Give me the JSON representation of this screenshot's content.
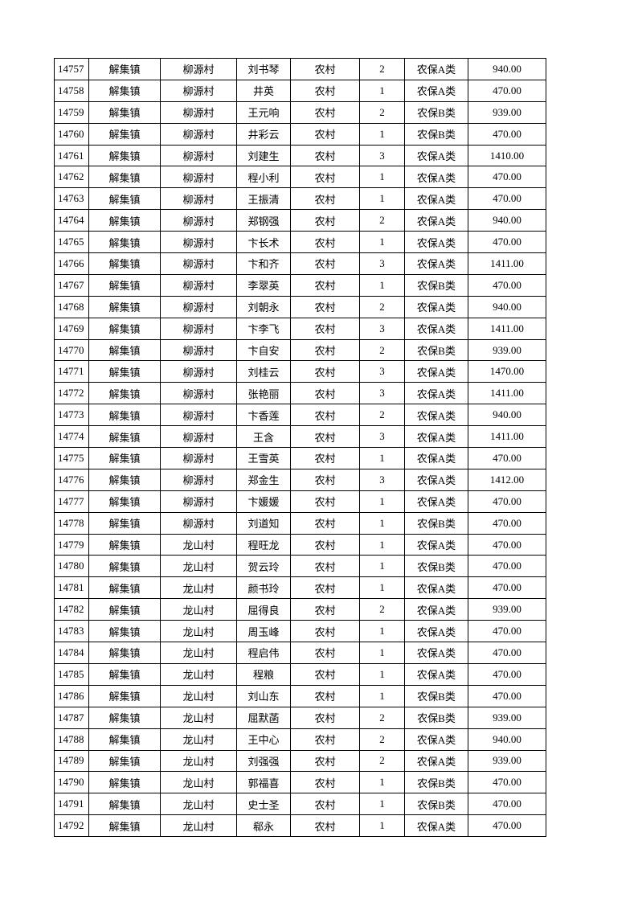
{
  "table": {
    "rows": [
      [
        "14757",
        "解集镇",
        "柳源村",
        "刘书琴",
        "农村",
        "2",
        "农保A类",
        "940.00"
      ],
      [
        "14758",
        "解集镇",
        "柳源村",
        "井英",
        "农村",
        "1",
        "农保A类",
        "470.00"
      ],
      [
        "14759",
        "解集镇",
        "柳源村",
        "王元响",
        "农村",
        "2",
        "农保B类",
        "939.00"
      ],
      [
        "14760",
        "解集镇",
        "柳源村",
        "井彩云",
        "农村",
        "1",
        "农保B类",
        "470.00"
      ],
      [
        "14761",
        "解集镇",
        "柳源村",
        "刘建生",
        "农村",
        "3",
        "农保A类",
        "1410.00"
      ],
      [
        "14762",
        "解集镇",
        "柳源村",
        "程小利",
        "农村",
        "1",
        "农保A类",
        "470.00"
      ],
      [
        "14763",
        "解集镇",
        "柳源村",
        "王振清",
        "农村",
        "1",
        "农保A类",
        "470.00"
      ],
      [
        "14764",
        "解集镇",
        "柳源村",
        "郑钢强",
        "农村",
        "2",
        "农保A类",
        "940.00"
      ],
      [
        "14765",
        "解集镇",
        "柳源村",
        "卞长术",
        "农村",
        "1",
        "农保A类",
        "470.00"
      ],
      [
        "14766",
        "解集镇",
        "柳源村",
        "卞和齐",
        "农村",
        "3",
        "农保A类",
        "1411.00"
      ],
      [
        "14767",
        "解集镇",
        "柳源村",
        "李翠英",
        "农村",
        "1",
        "农保B类",
        "470.00"
      ],
      [
        "14768",
        "解集镇",
        "柳源村",
        "刘朝永",
        "农村",
        "2",
        "农保A类",
        "940.00"
      ],
      [
        "14769",
        "解集镇",
        "柳源村",
        "卞李飞",
        "农村",
        "3",
        "农保A类",
        "1411.00"
      ],
      [
        "14770",
        "解集镇",
        "柳源村",
        "卞自安",
        "农村",
        "2",
        "农保B类",
        "939.00"
      ],
      [
        "14771",
        "解集镇",
        "柳源村",
        "刘桂云",
        "农村",
        "3",
        "农保A类",
        "1470.00"
      ],
      [
        "14772",
        "解集镇",
        "柳源村",
        "张艳丽",
        "农村",
        "3",
        "农保A类",
        "1411.00"
      ],
      [
        "14773",
        "解集镇",
        "柳源村",
        "卞香莲",
        "农村",
        "2",
        "农保A类",
        "940.00"
      ],
      [
        "14774",
        "解集镇",
        "柳源村",
        "王含",
        "农村",
        "3",
        "农保A类",
        "1411.00"
      ],
      [
        "14775",
        "解集镇",
        "柳源村",
        "王雪英",
        "农村",
        "1",
        "农保A类",
        "470.00"
      ],
      [
        "14776",
        "解集镇",
        "柳源村",
        "郑金生",
        "农村",
        "3",
        "农保A类",
        "1412.00"
      ],
      [
        "14777",
        "解集镇",
        "柳源村",
        "卞媛媛",
        "农村",
        "1",
        "农保A类",
        "470.00"
      ],
      [
        "14778",
        "解集镇",
        "柳源村",
        "刘道知",
        "农村",
        "1",
        "农保B类",
        "470.00"
      ],
      [
        "14779",
        "解集镇",
        "龙山村",
        "程旺龙",
        "农村",
        "1",
        "农保A类",
        "470.00"
      ],
      [
        "14780",
        "解集镇",
        "龙山村",
        "贺云玲",
        "农村",
        "1",
        "农保B类",
        "470.00"
      ],
      [
        "14781",
        "解集镇",
        "龙山村",
        "颜书玲",
        "农村",
        "1",
        "农保A类",
        "470.00"
      ],
      [
        "14782",
        "解集镇",
        "龙山村",
        "屈得良",
        "农村",
        "2",
        "农保A类",
        "939.00"
      ],
      [
        "14783",
        "解集镇",
        "龙山村",
        "周玉峰",
        "农村",
        "1",
        "农保A类",
        "470.00"
      ],
      [
        "14784",
        "解集镇",
        "龙山村",
        "程启伟",
        "农村",
        "1",
        "农保A类",
        "470.00"
      ],
      [
        "14785",
        "解集镇",
        "龙山村",
        "程粮",
        "农村",
        "1",
        "农保A类",
        "470.00"
      ],
      [
        "14786",
        "解集镇",
        "龙山村",
        "刘山东",
        "农村",
        "1",
        "农保B类",
        "470.00"
      ],
      [
        "14787",
        "解集镇",
        "龙山村",
        "屈默菡",
        "农村",
        "2",
        "农保B类",
        "939.00"
      ],
      [
        "14788",
        "解集镇",
        "龙山村",
        "王中心",
        "农村",
        "2",
        "农保A类",
        "940.00"
      ],
      [
        "14789",
        "解集镇",
        "龙山村",
        "刘强强",
        "农村",
        "2",
        "农保A类",
        "939.00"
      ],
      [
        "14790",
        "解集镇",
        "龙山村",
        "郭福喜",
        "农村",
        "1",
        "农保B类",
        "470.00"
      ],
      [
        "14791",
        "解集镇",
        "龙山村",
        "史士圣",
        "农村",
        "1",
        "农保B类",
        "470.00"
      ],
      [
        "14792",
        "解集镇",
        "龙山村",
        "郗永",
        "农村",
        "1",
        "农保A类",
        "470.00"
      ]
    ]
  }
}
